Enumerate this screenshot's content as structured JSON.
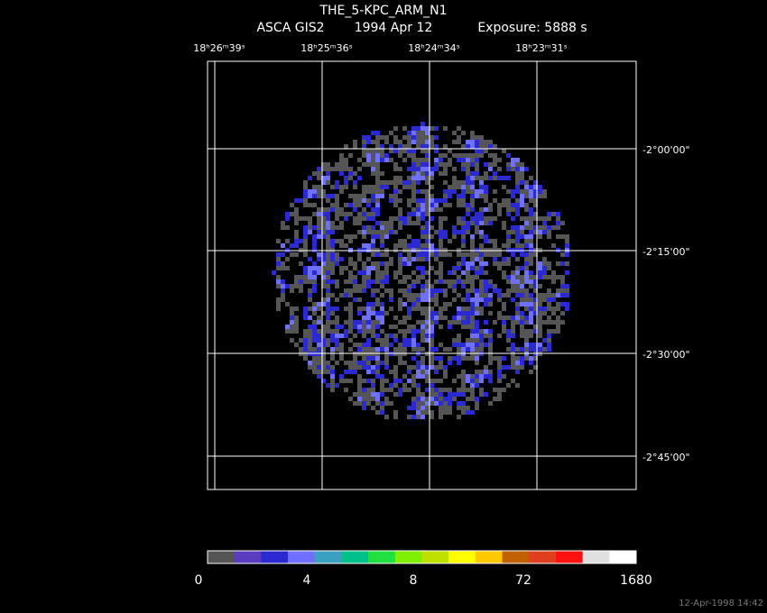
{
  "header": {
    "title": "THE_5-KPC_ARM_N1",
    "instrument": "ASCA GIS2",
    "date": "1994 Apr 12",
    "exposure": "Exposure:  5888 s"
  },
  "ra_labels": [
    "18ʰ26ᵐ39ˢ",
    "18ʰ25ᵐ36ˢ",
    "18ʰ24ᵐ34ˢ",
    "18ʰ23ᵐ31ˢ"
  ],
  "dec_labels": [
    "-2°00'00\"",
    "-2°15'00\"",
    "-2°30'00\"",
    "-2°45'00\""
  ],
  "colorbar": {
    "colors": [
      "#555555",
      "#5a3cc0",
      "#2a2ad0",
      "#7070ff",
      "#3ca0c0",
      "#00c08c",
      "#20e040",
      "#80f000",
      "#c0e000",
      "#ffff00",
      "#ffc800",
      "#c06000",
      "#e04020",
      "#ff1010",
      "#e0e0e0",
      "#ffffff"
    ],
    "labels": [
      "0",
      "4",
      "8",
      "72",
      "1680"
    ]
  },
  "footer": "12-Apr-1998 14:42"
}
